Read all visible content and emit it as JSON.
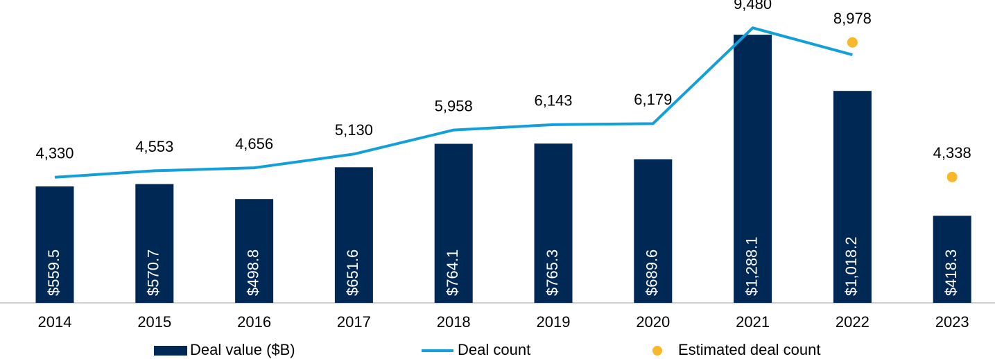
{
  "chart_data": {
    "type": "bar",
    "categories": [
      "2014",
      "2015",
      "2016",
      "2017",
      "2018",
      "2019",
      "2020",
      "2021",
      "2022",
      "2023"
    ],
    "ylim": [
      0,
      1455
    ],
    "y2lim": [
      0,
      10440
    ],
    "series": [
      {
        "name": "Deal value ($B)",
        "type": "bar",
        "color": "#002855",
        "values": [
          559.5,
          570.7,
          498.8,
          651.6,
          764.1,
          765.3,
          689.6,
          1288.1,
          1018.2,
          418.3
        ],
        "value_labels": [
          "$559.5",
          "$570.7",
          "$498.8",
          "$651.6",
          "$764.1",
          "$765.3",
          "$689.6",
          "$1,288.1",
          "$1,018.2",
          "$418.3"
        ]
      },
      {
        "name": "Deal count",
        "type": "line",
        "axis": "y2",
        "color": "#139fd9",
        "values": [
          4330,
          4553,
          4656,
          5130,
          5958,
          6143,
          6179,
          9480,
          8550,
          null
        ],
        "value_labels": [
          "4,330",
          "4,553",
          "4,656",
          "5,130",
          "5,958",
          "6,143",
          "6,179",
          "9,480",
          null,
          null
        ]
      },
      {
        "name": "Estimated deal count",
        "type": "scatter",
        "axis": "y2",
        "color": "#f7b82b",
        "values": [
          null,
          null,
          null,
          null,
          null,
          null,
          null,
          null,
          8978,
          4338
        ],
        "value_labels": [
          null,
          null,
          null,
          null,
          null,
          null,
          null,
          null,
          "8,978",
          "4,338"
        ]
      }
    ]
  }
}
